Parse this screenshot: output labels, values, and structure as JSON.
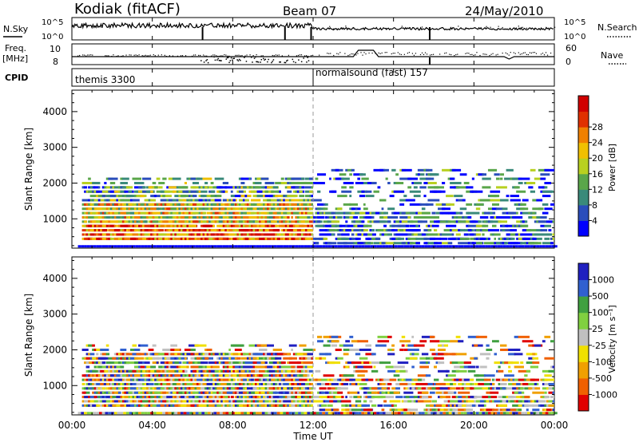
{
  "header": {
    "station": "Kodiak (fitACF)",
    "beam": "Beam 07",
    "date": "24/May/2010"
  },
  "colors": {
    "noise_sky": "#000000",
    "frame": "#000000"
  },
  "panels": {
    "noise": {
      "left_label": "N.Sky",
      "right_label": "N.Search",
      "left_ticks": [
        "10^5",
        "10^0"
      ],
      "right_ticks": [
        "10^5",
        "10^0"
      ]
    },
    "freq": {
      "left_label_1": "Freq.",
      "left_label_2": "[MHz]",
      "right_label": "Nave",
      "left_ticks": [
        "10",
        "8"
      ],
      "right_ticks": [
        "60",
        "0"
      ]
    },
    "cpid": {
      "label": "CPID",
      "segments": [
        {
          "name": "themis 3300",
          "start_hour": 0
        },
        {
          "name": "normalsound (fast) 157",
          "start_hour": 12
        }
      ]
    },
    "power": {
      "ylabel": "Slant Range [km]",
      "yticks": [
        1000,
        2000,
        3000,
        4000
      ],
      "colorbar_label": "Power [dB]",
      "colorbar_ticks": [
        "4",
        "8",
        "12",
        "16",
        "20",
        "24",
        "28"
      ],
      "colorbar_colors": [
        "#0000ff",
        "#2a4dbb",
        "#3a8a7a",
        "#5aa64a",
        "#b8d020",
        "#f0c000",
        "#f08000",
        "#e03000",
        "#d00000"
      ]
    },
    "velocity": {
      "ylabel": "Slant Range [km]",
      "yticks": [
        1000,
        2000,
        3000,
        4000
      ],
      "colorbar_label": "Velocity [m s⁻¹]",
      "colorbar_ticks": [
        "1000",
        "500",
        "100",
        "25",
        "-25",
        "-100",
        "-500",
        "-1000"
      ],
      "colorbar_colors": [
        "#2020c0",
        "#3060d0",
        "#40a040",
        "#80d040",
        "#c0c0c0",
        "#f0e000",
        "#f0a000",
        "#f06000",
        "#e00000"
      ]
    }
  },
  "xaxis": {
    "label": "Time UT",
    "ticks": [
      "00:00",
      "04:00",
      "08:00",
      "12:00",
      "16:00",
      "20:00",
      "00:00"
    ]
  },
  "chart_data": {
    "type": "heatmap",
    "title": "Kodiak (fitACF) Beam 07 24/May/2010",
    "xlabel": "Time UT",
    "ylabel": "Slant Range [km]",
    "xlim_hours": [
      0,
      24
    ],
    "ylim_km": [
      180,
      4600
    ],
    "mode_change_hour": 12,
    "scatter_regions": [
      {
        "t_start": 0.5,
        "t_end": 12.0,
        "r_min": 400,
        "r_max": 2200,
        "density": "high"
      },
      {
        "t_start": 12.0,
        "t_end": 24.0,
        "r_min": 250,
        "r_max": 2400,
        "density": "medium"
      }
    ],
    "noise_sky_level": "~10^4",
    "freq_mhz_approx": [
      10.1,
      10.4
    ],
    "nave_approx": [
      20,
      45
    ]
  }
}
